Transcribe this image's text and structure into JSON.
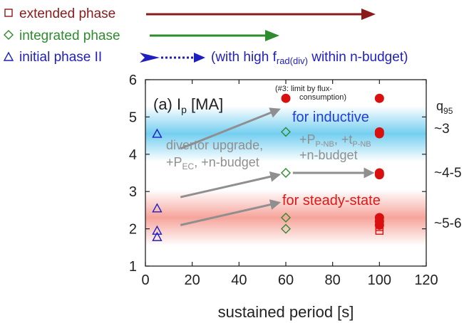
{
  "colors": {
    "extended": "#8b1a1a",
    "integrated": "#2e8b2e",
    "initial": "#1f1fbf",
    "inductive_text": "#1f3fd6",
    "steady_text": "#e01818",
    "gray": "#8f8f8f",
    "red_fill": "#d81010",
    "band_blue": "#5cc6ee",
    "band_red": "#f59a90"
  },
  "legend": [
    {
      "marker": "square",
      "label": "extended phase",
      "series": "extended"
    },
    {
      "marker": "diamond",
      "label": "integrated phase",
      "series": "integrated"
    },
    {
      "marker": "triangle",
      "label": "initial phase II",
      "series": "initial",
      "note_prefix": "(with high f",
      "note_sub": "rad(div)",
      "note_suffix": " within n-budget)"
    }
  ],
  "annotations": {
    "panel_prefix": "(a) I",
    "panel_sub": "p",
    "panel_suffix": " [MA]",
    "flux_line1": "(#3: limit by flux-",
    "flux_line2": "consumption)",
    "inductive": "for inductive",
    "steady": "for steady-state",
    "upgrade_line1": "divertor upgrade,",
    "upgrade_line2_prefix": "+P",
    "upgrade_line2_sub": "EC",
    "upgrade_line2_suffix": ", +n-budget",
    "pnb_prefix": "+P",
    "pnb_sub": "P-NB",
    "pnb_mid": ", +t",
    "pnb_sub2": "P-NB",
    "pnb_line2": "+n-budget",
    "q_prefix": "q",
    "q_sub": "95",
    "q1": "~3",
    "q2": "~4-5",
    "q3": "~5-6"
  },
  "chart_data": {
    "type": "scatter",
    "xlabel": "sustained period [s]",
    "ylabel": "",
    "xlim": [
      0,
      120
    ],
    "ylim": [
      1,
      6
    ],
    "xticks": [
      0,
      20,
      40,
      60,
      80,
      100,
      120
    ],
    "yticks": [
      1,
      2,
      3,
      4,
      5,
      6
    ],
    "bands": [
      {
        "name": "for inductive",
        "y_center": 4.55,
        "half_width": 0.75
      },
      {
        "name": "for steady-state",
        "y_center": 2.3,
        "half_width": 0.75
      }
    ],
    "series": [
      {
        "name": "extended phase",
        "marker": "square",
        "points": [
          [
            100,
            2.2
          ],
          [
            100,
            2.05
          ],
          [
            100,
            1.95
          ]
        ]
      },
      {
        "name": "extended phase (filled)",
        "marker": "circle",
        "points": [
          [
            60,
            5.5
          ],
          [
            100,
            5.5
          ],
          [
            100,
            4.6
          ],
          [
            100,
            4.55
          ],
          [
            100,
            3.5
          ],
          [
            100,
            3.45
          ],
          [
            100,
            2.3
          ],
          [
            100,
            2.2
          ],
          [
            100,
            2.1
          ]
        ]
      },
      {
        "name": "integrated phase",
        "marker": "diamond",
        "points": [
          [
            60,
            4.6
          ],
          [
            60,
            3.5
          ],
          [
            60,
            2.3
          ],
          [
            60,
            2.0
          ]
        ]
      },
      {
        "name": "initial phase II",
        "marker": "triangle",
        "points": [
          [
            5,
            4.55
          ],
          [
            5,
            2.55
          ],
          [
            5,
            1.95
          ],
          [
            5,
            1.78
          ]
        ]
      }
    ],
    "arrows": [
      {
        "from": [
          15,
          4.15
        ],
        "to": [
          57,
          5.2
        ]
      },
      {
        "from": [
          15,
          2.85
        ],
        "to": [
          57,
          3.45
        ]
      },
      {
        "from": [
          15,
          2.1
        ],
        "to": [
          57,
          2.7
        ]
      },
      {
        "from": [
          63,
          3.5
        ],
        "to": [
          97,
          3.5
        ]
      }
    ]
  }
}
